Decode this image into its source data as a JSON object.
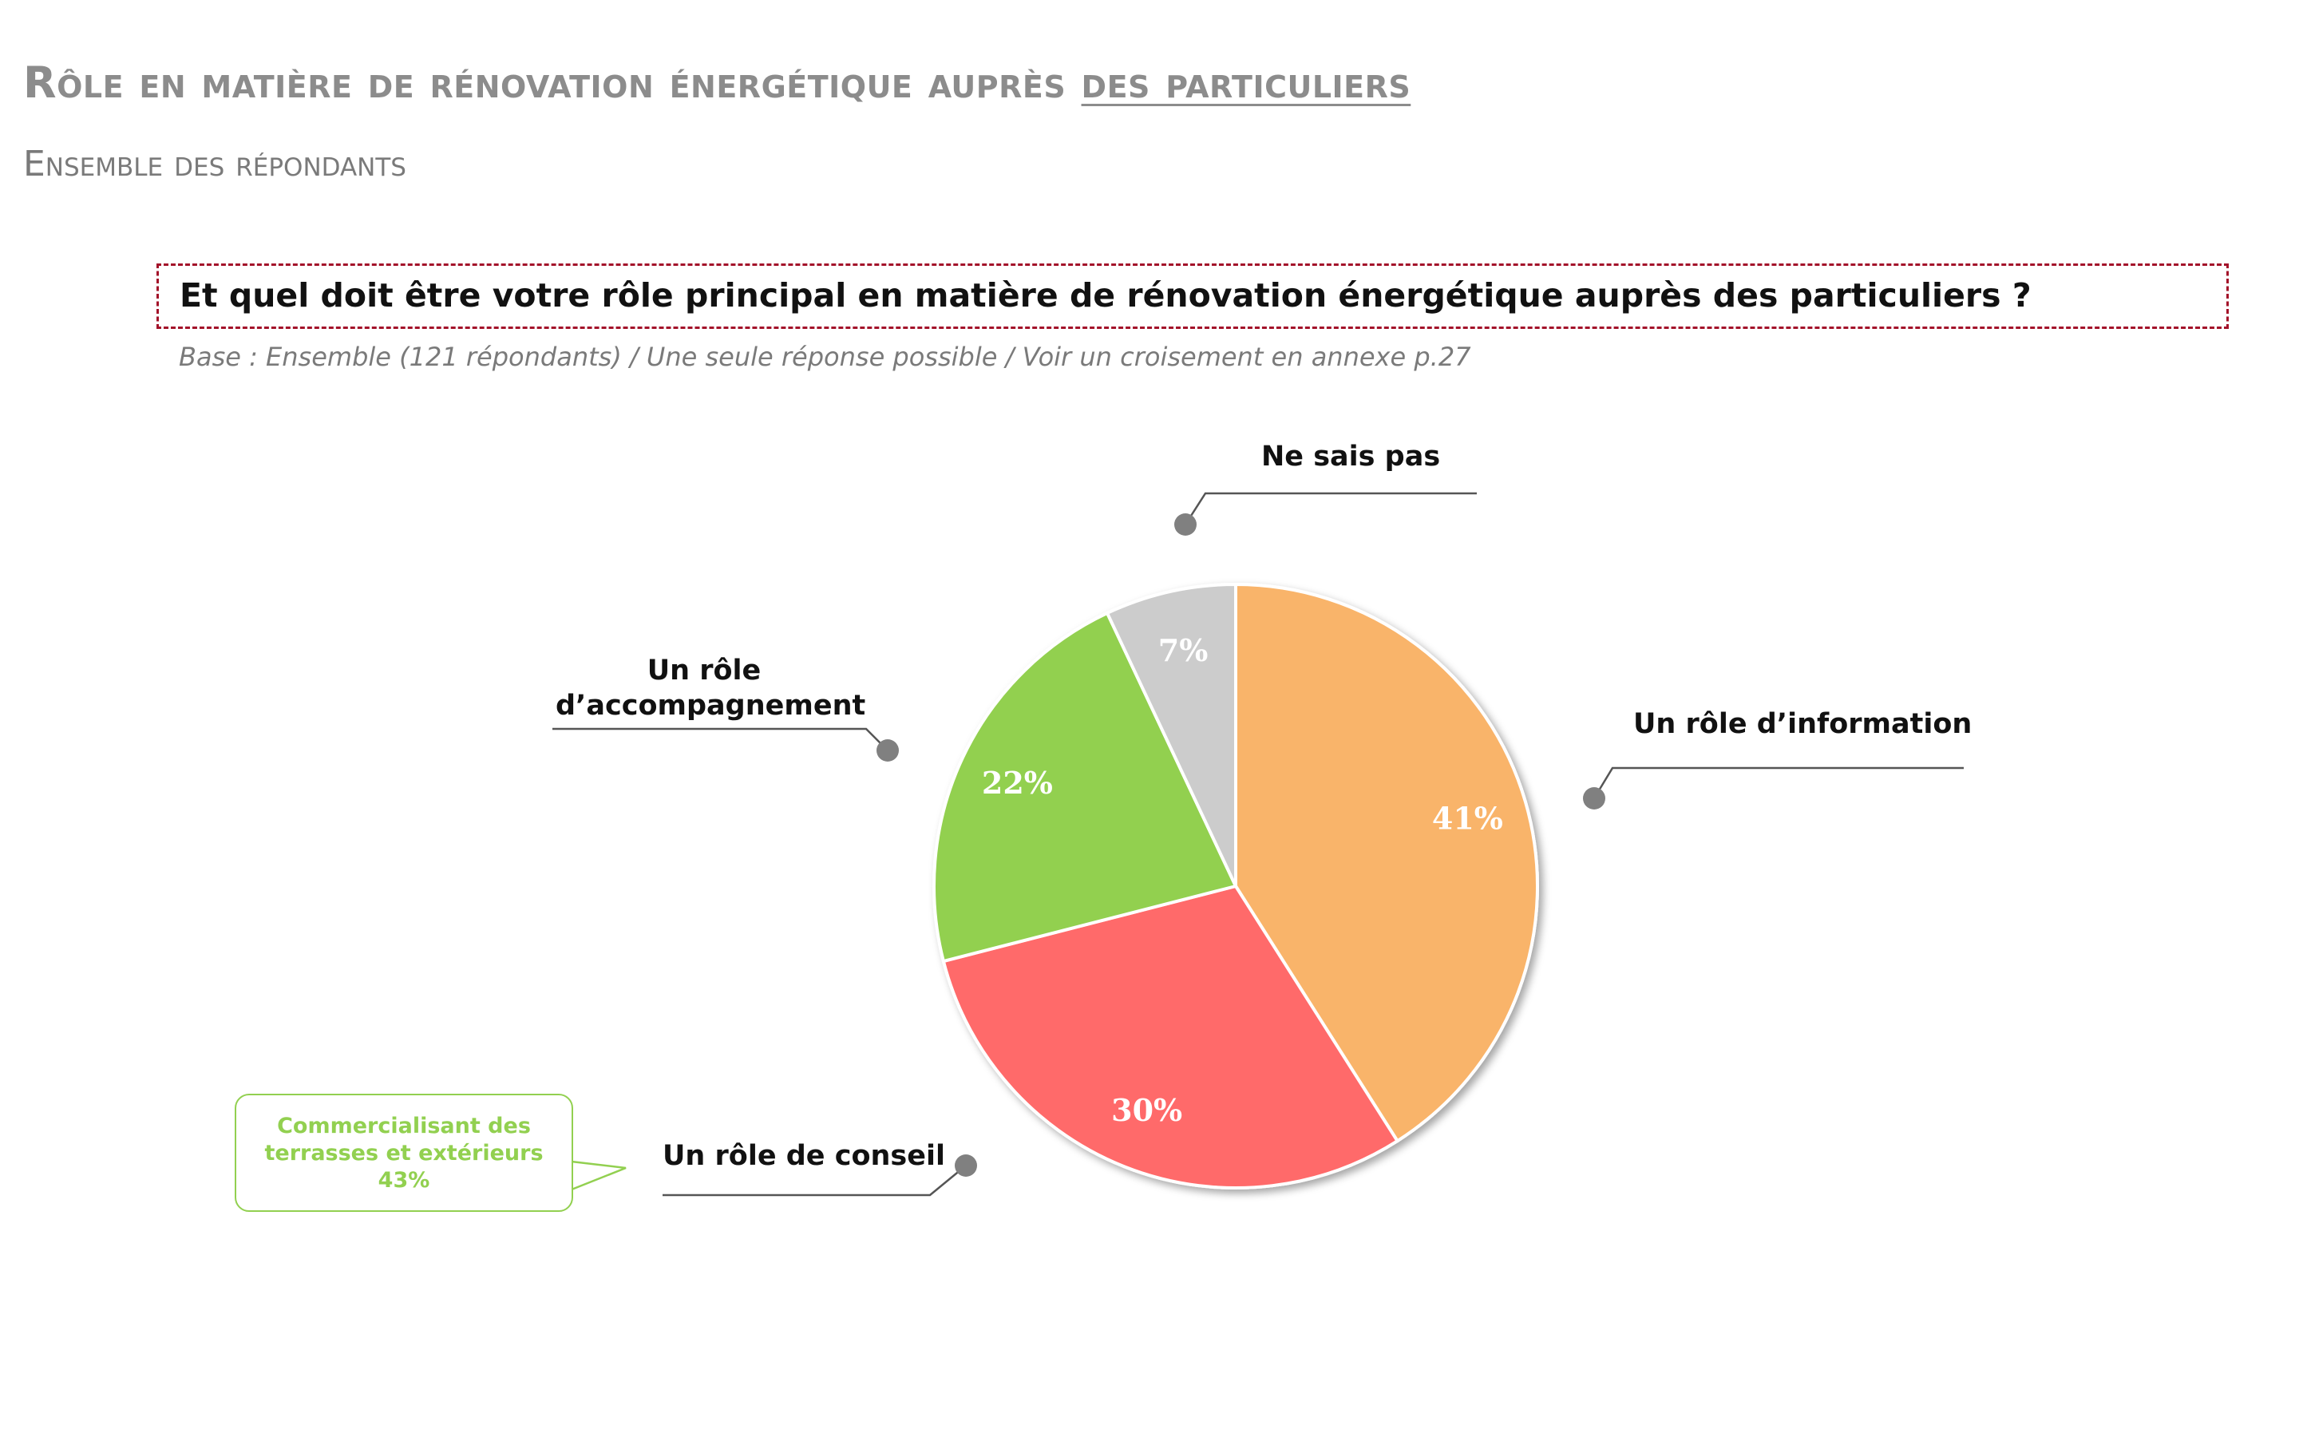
{
  "header": {
    "title_part1": "Rôle en matière de rénovation énergétique auprès ",
    "title_part2": "des particuliers",
    "subtitle": "Ensemble des répondants"
  },
  "question": {
    "text": "Et quel doit être votre rôle principal en matière de rénovation énergétique auprès des particuliers ?",
    "base": "Base : Ensemble (121 répondants) / Une seule réponse possible / Voir un croisement en annexe p.27"
  },
  "callout": {
    "line1": "Commercialisant des",
    "line2": "terrasses et extérieurs",
    "line3": "43%"
  },
  "colors": {
    "info": "#f9b46b",
    "conseil": "#ff6b6b",
    "accompagnement": "#92d050",
    "ne_sais_pas": "#cccccc",
    "question_border": "#a3122a",
    "leader": "#555555",
    "leader_dot": "#808080"
  },
  "chart_data": {
    "type": "pie",
    "start": "12 o'clock, clockwise",
    "categories": [
      "Un rôle d’information",
      "Un rôle de conseil",
      "Un rôle d’accompagnement",
      "Ne sais pas"
    ],
    "values": [
      41,
      30,
      22,
      7
    ],
    "labels": [
      "41%",
      "30%",
      "22%",
      "7%"
    ],
    "legend": "none — leader-line labels around the pie"
  },
  "cat_labels": {
    "info": "Un rôle d’information",
    "conseil": "Un rôle de conseil",
    "accompagnement_line1": "Un rôle",
    "accompagnement_line2": "d’accompagnement",
    "ne_sais_pas": "Ne sais pas"
  }
}
